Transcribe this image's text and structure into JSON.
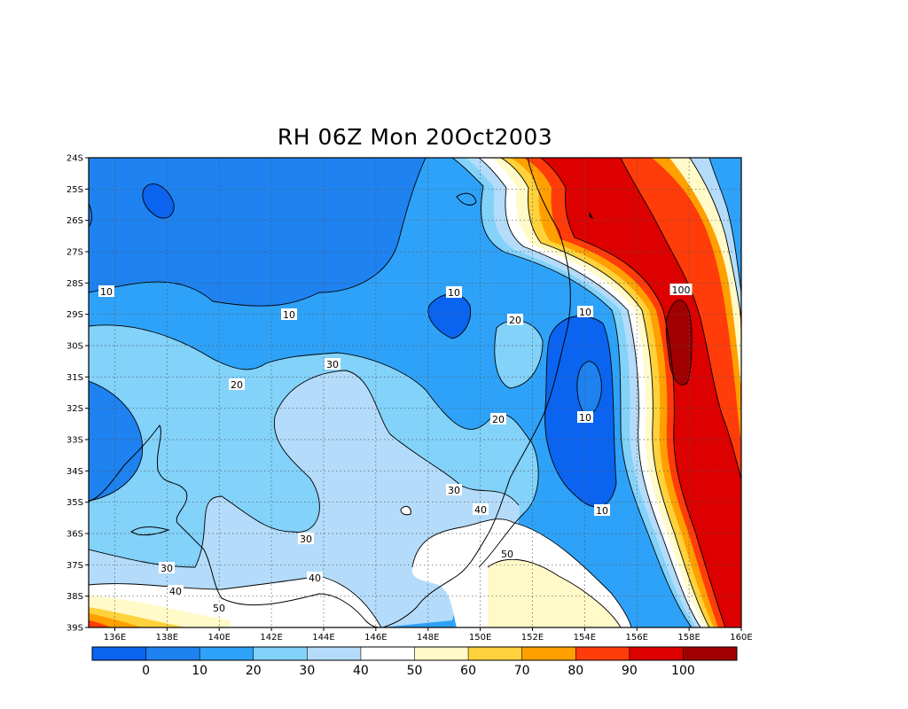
{
  "title": "RH 06Z Mon 20Oct2003",
  "variable": "RH",
  "map": {
    "lat_ticks": [
      "24S",
      "25S",
      "26S",
      "27S",
      "28S",
      "29S",
      "30S",
      "31S",
      "32S",
      "33S",
      "34S",
      "35S",
      "36S",
      "37S",
      "38S",
      "39S"
    ],
    "lon_ticks": [
      "136E",
      "138E",
      "140E",
      "142E",
      "144E",
      "146E",
      "148E",
      "150E",
      "152E",
      "154E",
      "156E",
      "158E",
      "160E"
    ],
    "lat_range": [
      -39,
      -24
    ],
    "lon_range": [
      135,
      160
    ],
    "grid": "dotted",
    "contour_labels": [
      "10",
      "10",
      "10",
      "10",
      "10",
      "10",
      "20",
      "20",
      "20",
      "30",
      "30",
      "30",
      "30",
      "40",
      "40",
      "40",
      "50",
      "50",
      "100"
    ]
  },
  "colorbar": {
    "labels": [
      "0",
      "10",
      "20",
      "30",
      "40",
      "50",
      "60",
      "70",
      "80",
      "90",
      "100"
    ],
    "colors": [
      "#0a64f0",
      "#1e82f0",
      "#2ea2f8",
      "#82d2fa",
      "#b4dcfa",
      "#ffffff",
      "#fffac8",
      "#ffd23c",
      "#ffa000",
      "#ff3c0a",
      "#dc0000",
      "#a00000"
    ]
  },
  "legend_levels": {
    "0": "#0a64f0",
    "10": "#1e82f0",
    "20": "#2ea2f8",
    "30": "#82d2fa",
    "40": "#b4dcfa",
    "50": "#ffffff",
    "60": "#fffac8",
    "70": "#ffd23c",
    "80": "#ffa000",
    "90": "#ff3c0a",
    "100": "#dc0000",
    "max": "#a00000"
  }
}
